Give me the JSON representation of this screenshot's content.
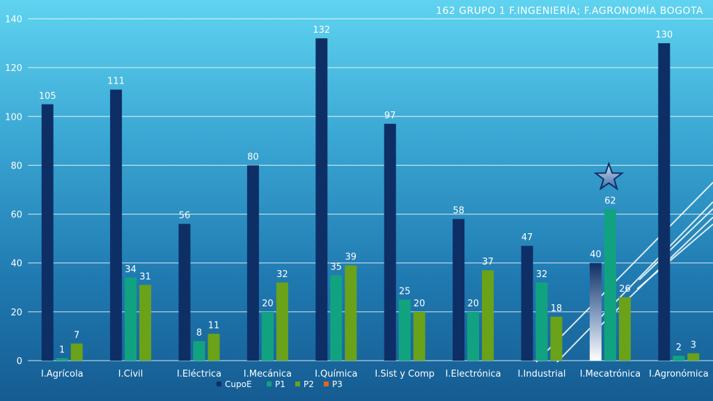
{
  "chart_data": {
    "type": "bar",
    "title": "162  GRUPO 1  F.INGENIERÍA;  F.AGRONOMÍA BOGOTA",
    "xlabel": "",
    "ylabel": "",
    "ylim": [
      0,
      140
    ],
    "yticks": [
      "0",
      "20",
      "40",
      "60",
      "80",
      "100",
      "120",
      "140"
    ],
    "grid": true,
    "legend_position": "bottom",
    "categories": [
      "I.Agrícola",
      "I.Civil",
      "I.Eléctrica",
      "I.Mecánica",
      "I.Química",
      "I.Sist y Comp",
      "I.Electrónica",
      "I.Industrial",
      "I.Mecatrónica",
      "I.Agronómica"
    ],
    "series": [
      {
        "name": "CupoE",
        "color": "#0e2f66",
        "values": [
          105,
          111,
          56,
          80,
          132,
          97,
          58,
          47,
          40,
          130
        ]
      },
      {
        "name": "P1",
        "color": "#11a37f",
        "values": [
          1,
          34,
          8,
          20,
          35,
          25,
          20,
          32,
          62,
          2
        ]
      },
      {
        "name": "P2",
        "color": "#6aa21a",
        "values": [
          7,
          31,
          11,
          32,
          39,
          20,
          37,
          18,
          26,
          3
        ]
      },
      {
        "name": "P3",
        "color": "#e8641e",
        "values": [
          null,
          null,
          null,
          null,
          null,
          null,
          null,
          null,
          null,
          null
        ]
      }
    ],
    "annotations": [
      {
        "type": "star-icon",
        "category": "I.Mecatrónica",
        "series": "P1"
      }
    ]
  }
}
